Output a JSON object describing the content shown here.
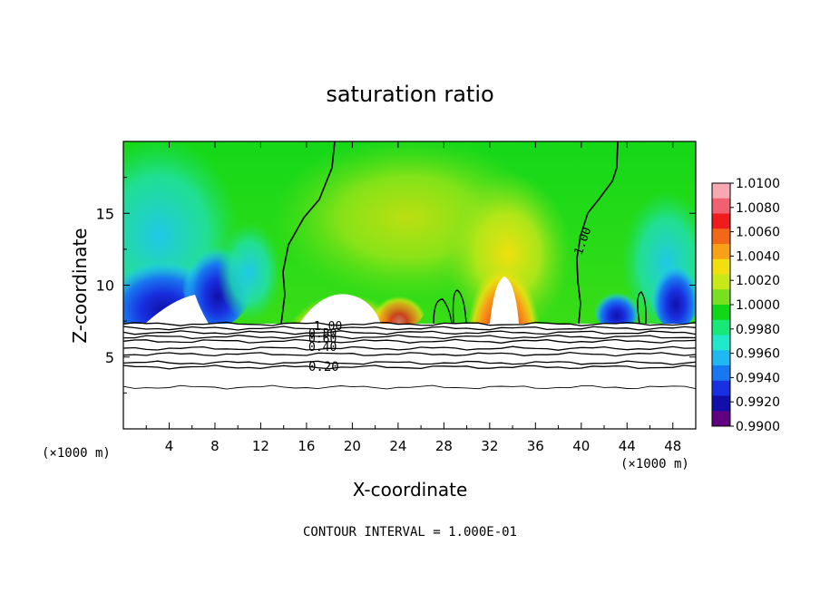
{
  "chart_data": {
    "type": "heatmap",
    "title": "saturation ratio",
    "xlabel": "X-coordinate",
    "ylabel": "Z-coordinate",
    "x_unit_left": "(×1000 m)",
    "x_unit_right": "(×1000 m)",
    "xlim": [
      0,
      50
    ],
    "ylim": [
      0,
      20
    ],
    "x_ticks": [
      4,
      8,
      12,
      16,
      20,
      24,
      28,
      32,
      36,
      40,
      44,
      48
    ],
    "y_ticks": [
      5,
      10,
      15
    ],
    "colorbar": {
      "min": 0.99,
      "max": 1.01,
      "labels": [
        "1.0100",
        "1.0080",
        "1.0060",
        "1.0040",
        "1.0020",
        "1.0000",
        "0.9980",
        "0.9960",
        "0.9940",
        "0.9920",
        "0.9900"
      ],
      "colors": [
        "#f7a8b0",
        "#f06070",
        "#ee1c1c",
        "#f06818",
        "#f8a018",
        "#f0e010",
        "#c8e818",
        "#78e020",
        "#10d818",
        "#18e878",
        "#20e8c8",
        "#20b8f0",
        "#1878f0",
        "#1830e0",
        "#1010a8",
        "#600080"
      ]
    },
    "contour_labels": [
      "1.00",
      "1.00",
      "0.80",
      "0.60",
      "0.40",
      "0.20"
    ],
    "contour_levels": [
      1.0,
      0.9,
      0.8,
      0.7,
      0.6,
      0.5,
      0.4,
      0.3,
      0.2,
      0.1
    ],
    "contour_interval_text": "CONTOUR INTERVAL = 1.000E-01"
  }
}
